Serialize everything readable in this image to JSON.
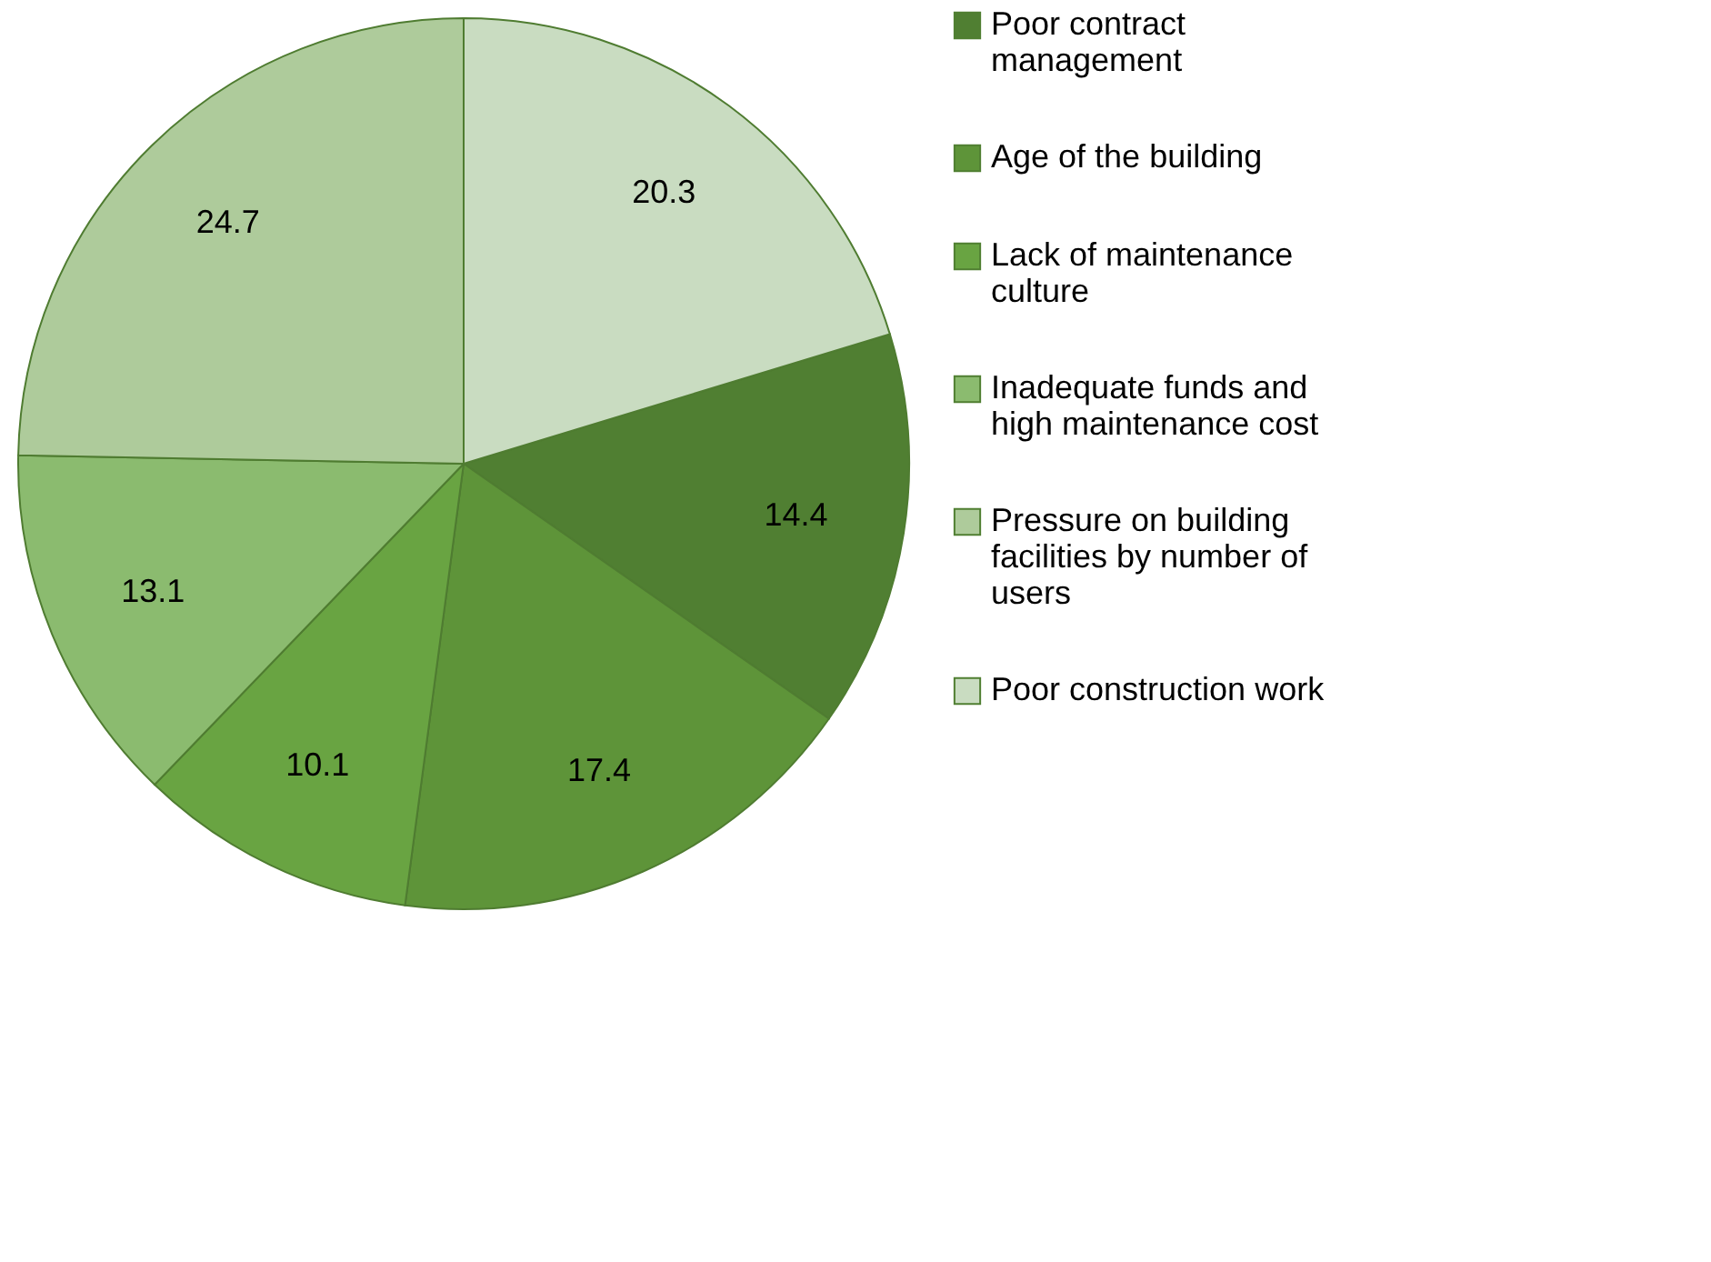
{
  "chart_data": {
    "type": "pie",
    "categories": [
      "Poor contract management",
      "Age of the building",
      "Lack of maintenance culture",
      "Inadequate funds and high maintenance cost",
      "Pressure on building facilities by number of users",
      "Poor construction work"
    ],
    "values": [
      14.4,
      17.4,
      10.1,
      13.1,
      24.7,
      20.3
    ],
    "colors": [
      "#507f32",
      "#5e9439",
      "#69a442",
      "#8bbb6f",
      "#aecb9b",
      "#c9dcc1"
    ],
    "data_labels": true,
    "legend": "right"
  }
}
